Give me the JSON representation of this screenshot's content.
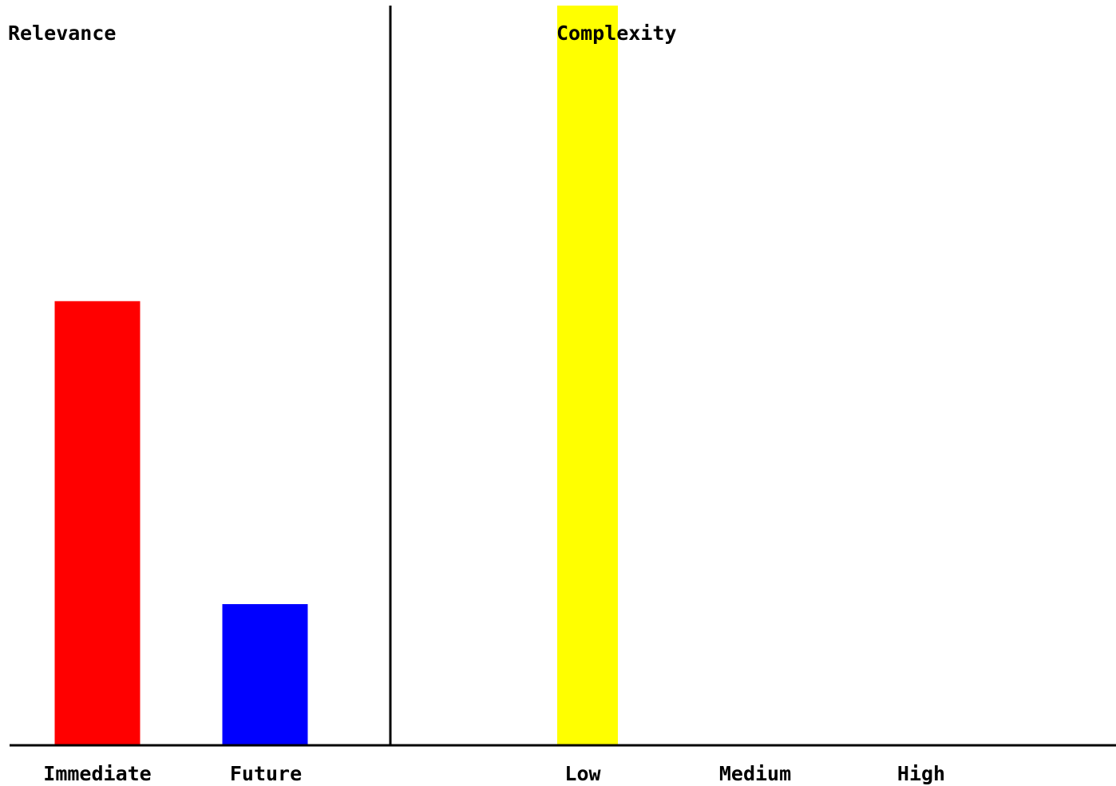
{
  "chart_data": [
    {
      "type": "bar",
      "title": "Relevance",
      "categories": [
        "Immediate",
        "Future"
      ],
      "values": [
        60,
        19
      ],
      "colors": [
        "#ff0000",
        "#0000ff"
      ],
      "ylim": [
        0,
        100
      ],
      "grid": false,
      "legend": "none"
    },
    {
      "type": "bar",
      "title": "Complexity",
      "categories": [
        "Low",
        "Medium",
        "High"
      ],
      "values": [
        100,
        0,
        0
      ],
      "colors": [
        "#ffff00",
        "#ffff00",
        "#ffff00"
      ],
      "ylim": [
        0,
        100
      ],
      "grid": false,
      "legend": "none"
    }
  ]
}
